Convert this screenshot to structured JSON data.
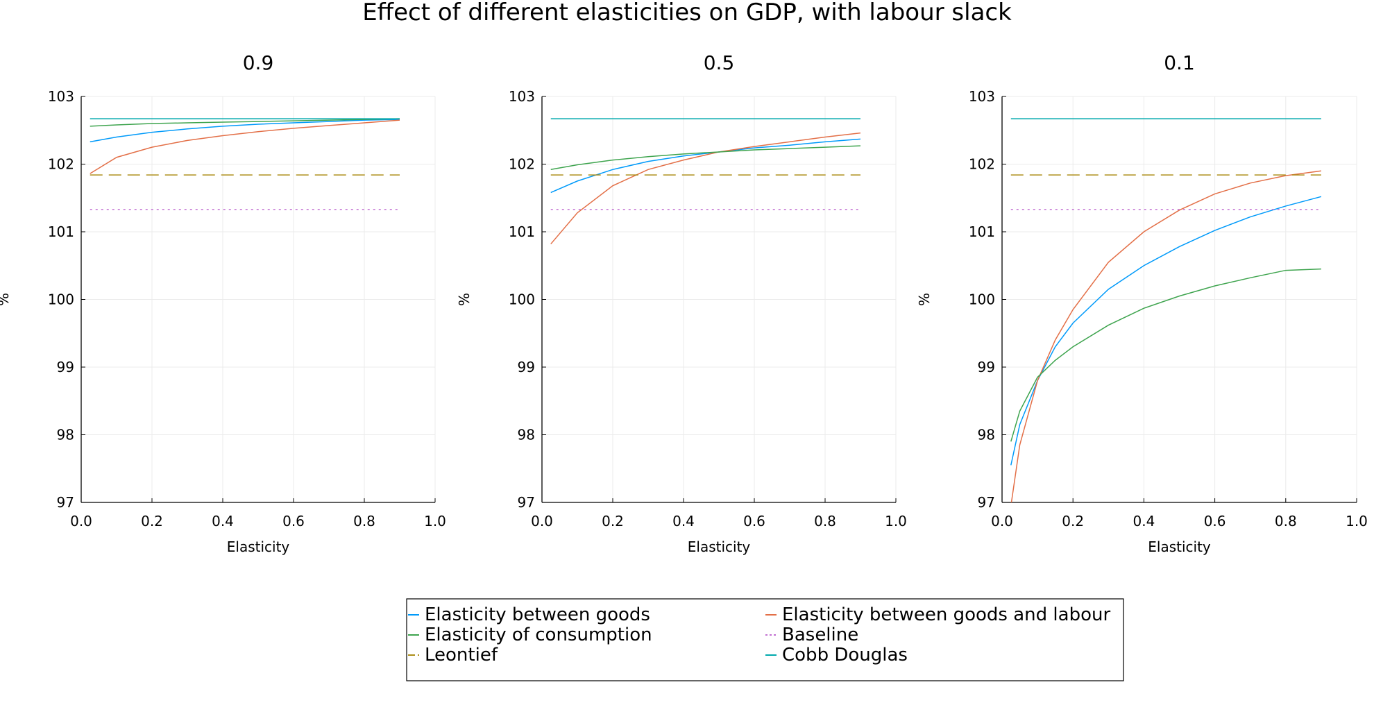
{
  "title": "Effect of different elasticities on GDP, with labour slack",
  "colors": {
    "goods": "#009AFA",
    "goods_labour": "#E36F47",
    "consumption": "#3EA44E",
    "baseline": "#C271D2",
    "leontief": "#AC8D18",
    "cobb_douglas": "#00A9AD",
    "axis": "#000000",
    "grid": "#EBEBEB"
  },
  "legend": {
    "placement": "bottom-center",
    "entries": [
      {
        "label": "Elasticity between goods",
        "color": "#009AFA",
        "dash": "solid"
      },
      {
        "label": "Elasticity between goods and labour",
        "color": "#E36F47",
        "dash": "solid"
      },
      {
        "label": "Elasticity of consumption",
        "color": "#3EA44E",
        "dash": "solid"
      },
      {
        "label": "Baseline",
        "color": "#C271D2",
        "dash": "dot"
      },
      {
        "label": "Leontief",
        "color": "#AC8D18",
        "dash": "dash"
      },
      {
        "label": "Cobb Douglas",
        "color": "#00A9AD",
        "dash": "solid"
      }
    ]
  },
  "chart_data": [
    {
      "type": "line",
      "title": "0.9",
      "xlabel": "Elasticity",
      "ylabel": "%",
      "xlim": [
        0.0,
        1.0
      ],
      "ylim": [
        97,
        103
      ],
      "xticks": [
        "0.0",
        "0.2",
        "0.4",
        "0.6",
        "0.8",
        "1.0"
      ],
      "yticks": [
        "97",
        "98",
        "99",
        "100",
        "101",
        "102",
        "103"
      ],
      "grid": true,
      "x": [
        0.025,
        0.1,
        0.2,
        0.3,
        0.4,
        0.5,
        0.6,
        0.7,
        0.8,
        0.9
      ],
      "series": [
        {
          "name": "Elasticity between goods",
          "color": "#009AFA",
          "dash": "solid",
          "values": [
            102.33,
            102.4,
            102.47,
            102.52,
            102.56,
            102.59,
            102.61,
            102.63,
            102.65,
            102.66
          ]
        },
        {
          "name": "Elasticity between goods and labour",
          "color": "#E36F47",
          "dash": "solid",
          "values": [
            101.86,
            102.1,
            102.25,
            102.35,
            102.42,
            102.48,
            102.53,
            102.57,
            102.61,
            102.65
          ]
        },
        {
          "name": "Elasticity of consumption",
          "color": "#3EA44E",
          "dash": "solid",
          "values": [
            102.56,
            102.58,
            102.6,
            102.61,
            102.62,
            102.63,
            102.64,
            102.65,
            102.66,
            102.67
          ]
        },
        {
          "name": "Baseline",
          "color": "#C271D2",
          "dash": "dot",
          "values": [
            101.33,
            101.33,
            101.33,
            101.33,
            101.33,
            101.33,
            101.33,
            101.33,
            101.33,
            101.33
          ]
        },
        {
          "name": "Leontief",
          "color": "#AC8D18",
          "dash": "dash",
          "values": [
            101.84,
            101.84,
            101.84,
            101.84,
            101.84,
            101.84,
            101.84,
            101.84,
            101.84,
            101.84
          ]
        },
        {
          "name": "Cobb Douglas",
          "color": "#00A9AD",
          "dash": "solid",
          "values": [
            102.67,
            102.67,
            102.67,
            102.67,
            102.67,
            102.67,
            102.67,
            102.67,
            102.67,
            102.67
          ]
        }
      ]
    },
    {
      "type": "line",
      "title": "0.5",
      "xlabel": "Elasticity",
      "ylabel": "%",
      "xlim": [
        0.0,
        1.0
      ],
      "ylim": [
        97,
        103
      ],
      "xticks": [
        "0.0",
        "0.2",
        "0.4",
        "0.6",
        "0.8",
        "1.0"
      ],
      "yticks": [
        "97",
        "98",
        "99",
        "100",
        "101",
        "102",
        "103"
      ],
      "grid": true,
      "x": [
        0.025,
        0.1,
        0.2,
        0.3,
        0.4,
        0.5,
        0.6,
        0.7,
        0.8,
        0.9
      ],
      "series": [
        {
          "name": "Elasticity between goods",
          "color": "#009AFA",
          "dash": "solid",
          "values": [
            101.58,
            101.75,
            101.92,
            102.04,
            102.12,
            102.18,
            102.24,
            102.28,
            102.33,
            102.37
          ]
        },
        {
          "name": "Elasticity between goods and labour",
          "color": "#E36F47",
          "dash": "solid",
          "values": [
            100.82,
            101.28,
            101.68,
            101.92,
            102.06,
            102.18,
            102.26,
            102.33,
            102.4,
            102.46
          ]
        },
        {
          "name": "Elasticity of consumption",
          "color": "#3EA44E",
          "dash": "solid",
          "values": [
            101.92,
            101.99,
            102.06,
            102.11,
            102.15,
            102.18,
            102.21,
            102.23,
            102.25,
            102.27
          ]
        },
        {
          "name": "Baseline",
          "color": "#C271D2",
          "dash": "dot",
          "values": [
            101.33,
            101.33,
            101.33,
            101.33,
            101.33,
            101.33,
            101.33,
            101.33,
            101.33,
            101.33
          ]
        },
        {
          "name": "Leontief",
          "color": "#AC8D18",
          "dash": "dash",
          "values": [
            101.84,
            101.84,
            101.84,
            101.84,
            101.84,
            101.84,
            101.84,
            101.84,
            101.84,
            101.84
          ]
        },
        {
          "name": "Cobb Douglas",
          "color": "#00A9AD",
          "dash": "solid",
          "values": [
            102.67,
            102.67,
            102.67,
            102.67,
            102.67,
            102.67,
            102.67,
            102.67,
            102.67,
            102.67
          ]
        }
      ]
    },
    {
      "type": "line",
      "title": "0.1",
      "xlabel": "Elasticity",
      "ylabel": "%",
      "xlim": [
        0.0,
        1.0
      ],
      "ylim": [
        97,
        103
      ],
      "xticks": [
        "0.0",
        "0.2",
        "0.4",
        "0.6",
        "0.8",
        "1.0"
      ],
      "yticks": [
        "97",
        "98",
        "99",
        "100",
        "101",
        "102",
        "103"
      ],
      "grid": true,
      "x": [
        0.025,
        0.05,
        0.1,
        0.15,
        0.2,
        0.3,
        0.4,
        0.5,
        0.6,
        0.7,
        0.8,
        0.9
      ],
      "series": [
        {
          "name": "Elasticity between goods",
          "color": "#009AFA",
          "dash": "solid",
          "values": [
            97.55,
            98.15,
            98.8,
            99.3,
            99.65,
            100.15,
            100.5,
            100.78,
            101.02,
            101.22,
            101.38,
            101.52
          ]
        },
        {
          "name": "Elasticity between goods and labour",
          "color": "#E36F47",
          "dash": "solid",
          "values": [
            96.95,
            97.85,
            98.8,
            99.4,
            99.85,
            100.55,
            101.0,
            101.32,
            101.56,
            101.72,
            101.83,
            101.9
          ]
        },
        {
          "name": "Elasticity of consumption",
          "color": "#3EA44E",
          "dash": "solid",
          "values": [
            97.9,
            98.35,
            98.85,
            99.1,
            99.3,
            99.62,
            99.87,
            100.05,
            100.2,
            100.32,
            100.43,
            100.45
          ]
        },
        {
          "name": "Baseline",
          "color": "#C271D2",
          "dash": "dot",
          "values": [
            101.33,
            101.33,
            101.33,
            101.33,
            101.33,
            101.33,
            101.33,
            101.33,
            101.33,
            101.33,
            101.33,
            101.33
          ]
        },
        {
          "name": "Leontief",
          "color": "#AC8D18",
          "dash": "dash",
          "values": [
            101.84,
            101.84,
            101.84,
            101.84,
            101.84,
            101.84,
            101.84,
            101.84,
            101.84,
            101.84,
            101.84,
            101.84
          ]
        },
        {
          "name": "Cobb Douglas",
          "color": "#00A9AD",
          "dash": "solid",
          "values": [
            102.67,
            102.67,
            102.67,
            102.67,
            102.67,
            102.67,
            102.67,
            102.67,
            102.67,
            102.67,
            102.67,
            102.67
          ]
        }
      ]
    }
  ]
}
